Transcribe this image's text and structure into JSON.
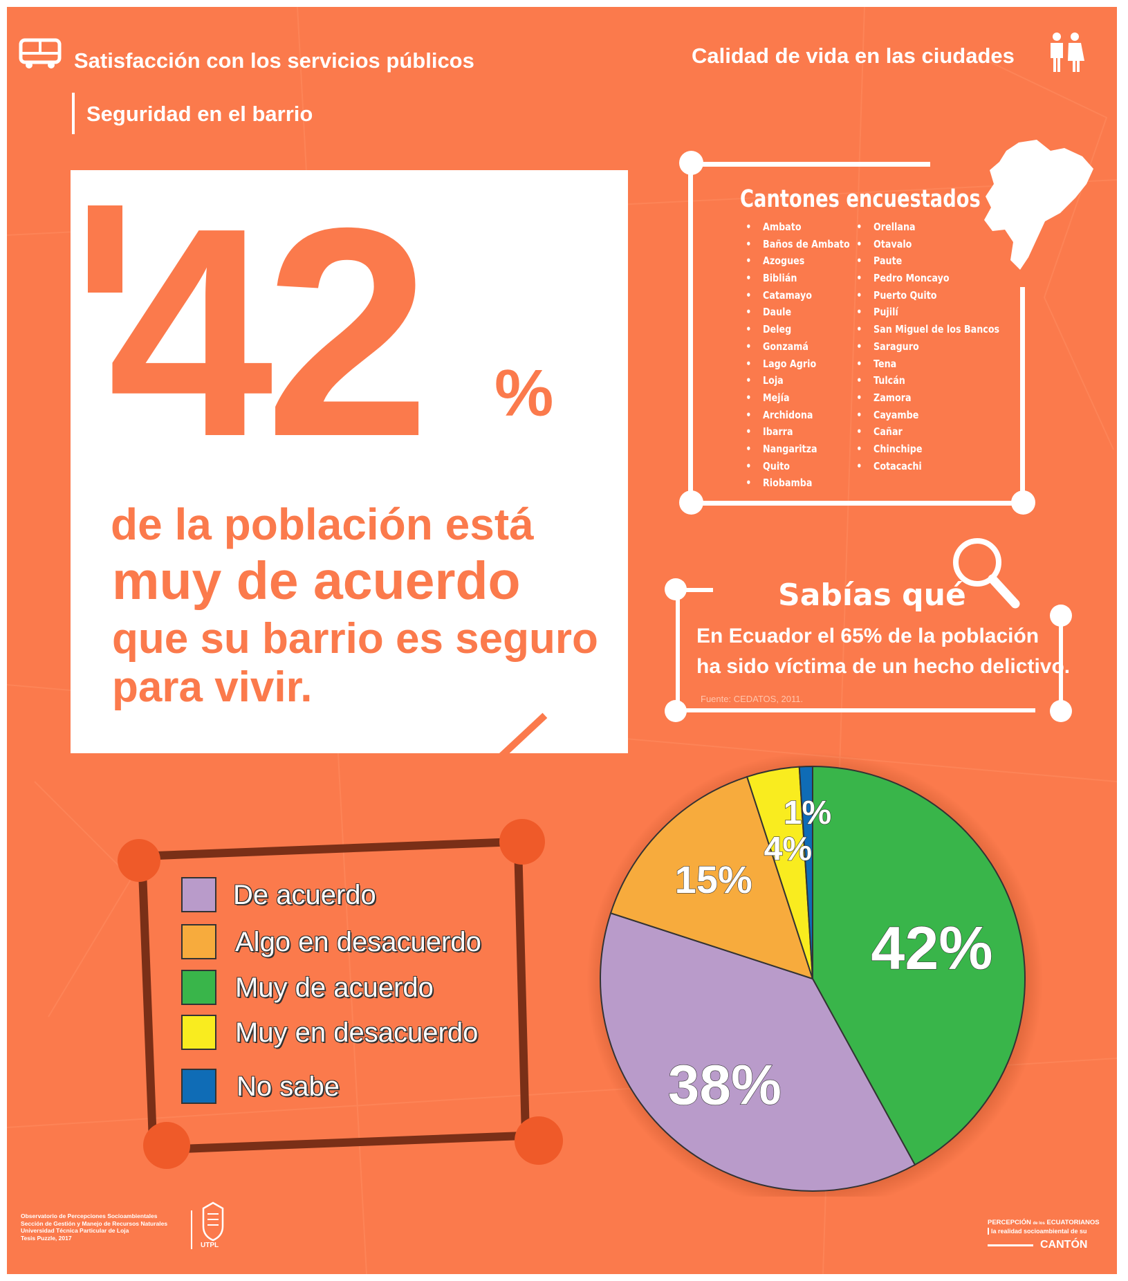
{
  "header": {
    "left_title": "Satisfacción con los servicios públicos",
    "right_title": "Calidad de vida en las ciudades",
    "subtitle": "Seguridad en el barrio"
  },
  "stat": {
    "number": "42",
    "percent_sign": "%",
    "line1": "de la población está",
    "line2": "muy de acuerdo",
    "line3": "que su barrio es seguro",
    "line4": "para vivir."
  },
  "cantones": {
    "title": "Cantones encuestados",
    "col1": [
      "Ambato",
      "Baños de Ambato",
      "Azogues",
      "Biblián",
      "Catamayo",
      "Daule",
      "Deleg",
      "Gonzamá",
      "Lago Agrio",
      "Loja",
      "Mejía",
      "Archidona",
      "Ibarra",
      "Nangaritza",
      "Quito",
      "Riobamba"
    ],
    "col2": [
      "Orellana",
      "Otavalo",
      "Paute",
      "Pedro Moncayo",
      "Puerto Quito",
      "Pujilí",
      "San Miguel de los Bancos",
      "Saraguro",
      "Tena",
      "Tulcán",
      "Zamora",
      "Cayambe",
      "Cañar",
      "Chinchipe",
      "Cotacachi"
    ]
  },
  "sabias": {
    "title": "Sabías qué",
    "line1": "En Ecuador el 65% de la población",
    "line2": "ha sido víctima de un hecho delictivo.",
    "source": "Fuente: CEDATOS, 2011."
  },
  "footer": {
    "left_lines": [
      "Observatorio de Percepciones Socioambientales",
      "Sección de Gestión y Manejo de Recursos Naturales",
      "Universidad Técnica Particular de Loja",
      "Tesis Puzzle, 2017"
    ],
    "utpl": "UTPL",
    "logo_line1_a": "PERCEPCIÓN",
    "logo_line1_b": "de los",
    "logo_line1_c": "ECUATORIANOS",
    "logo_line2": "la realidad socioambiental de su",
    "logo_line3": "CANTÓN"
  },
  "colors": {
    "background": "#fb7a4c",
    "accent": "#fb7a4c",
    "legend_frame": "#7a2f17",
    "legend_dots": "#ef5a29"
  },
  "icons": [
    "bus-icon",
    "people-icon",
    "ecuador-map-icon",
    "magnifier-icon",
    "utpl-crest-icon"
  ],
  "chart_data": {
    "type": "pie",
    "title": "",
    "categories": [
      "Muy de acuerdo",
      "De acuerdo",
      "Algo en desacuerdo",
      "Muy en desacuerdo",
      "No sabe"
    ],
    "values": [
      42,
      38,
      15,
      4,
      1
    ],
    "labels": [
      "42%",
      "38%",
      "15%",
      "4%",
      "1%"
    ],
    "colors": [
      "#39b54a",
      "#b99bca",
      "#f7ab3d",
      "#f9ec1f",
      "#0f6cb6"
    ],
    "legend": [
      {
        "label": "De acuerdo",
        "color": "#b99bca"
      },
      {
        "label": "Algo en desacuerdo",
        "color": "#f7ab3d"
      },
      {
        "label": "Muy de acuerdo",
        "color": "#39b54a"
      },
      {
        "label": "Muy en desacuerdo",
        "color": "#f9ec1f"
      },
      {
        "label": "No sabe",
        "color": "#0f6cb6"
      }
    ],
    "legend_position": "left"
  }
}
